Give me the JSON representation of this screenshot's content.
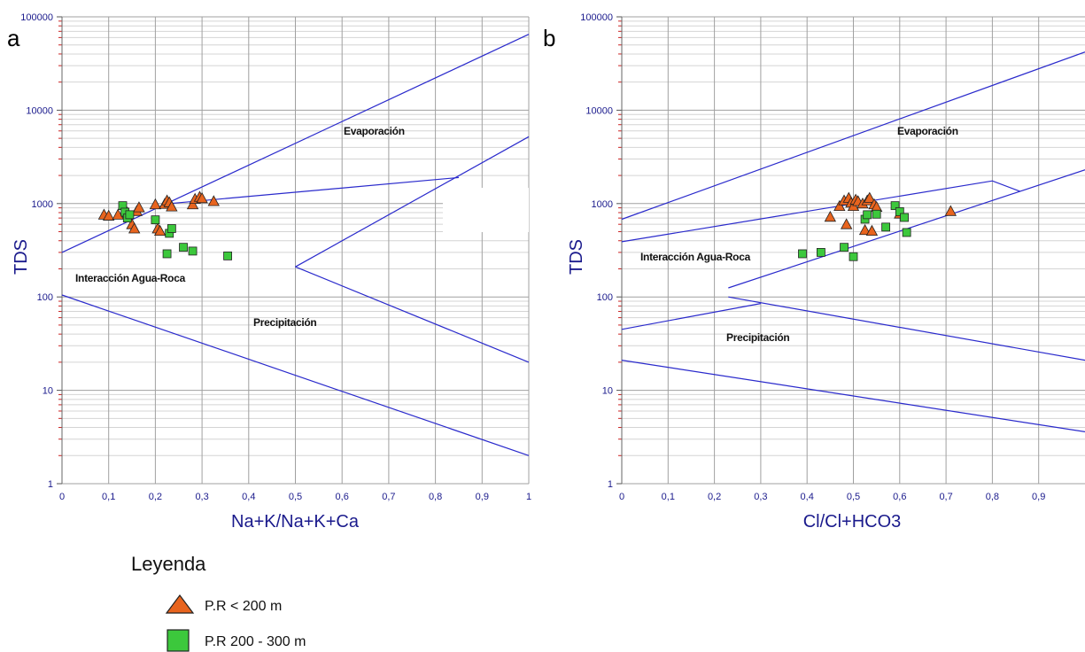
{
  "chart_data": [
    {
      "panel": "a",
      "type": "scatter",
      "xlabel": "Na+K/Na+K+Ca",
      "ylabel": "TDS",
      "xlim": [
        0,
        1
      ],
      "ylim": [
        1,
        100000
      ],
      "yscale": "log",
      "x_ticks": [
        "0",
        "0,1",
        "0,2",
        "0,3",
        "0,4",
        "0,5",
        "0,6",
        "0,7",
        "0,8",
        "0,9",
        "1"
      ],
      "y_ticks": [
        "1",
        "10",
        "100",
        "1000",
        "10000",
        "100000"
      ],
      "grid": true,
      "annotations": [
        "Evaporación",
        "Interacción Agua-Roca",
        "Precipitación"
      ],
      "lines": [
        {
          "points": [
            [
              0,
              300
            ],
            [
              1,
              65000
            ]
          ]
        },
        {
          "points": [
            [
              0,
              105
            ],
            [
              1,
              2
            ]
          ]
        },
        {
          "points": [
            [
              0.23,
              1000
            ],
            [
              0.85,
              1900
            ]
          ]
        },
        {
          "points": [
            [
              0.5,
              210
            ],
            [
              1,
              5200
            ]
          ]
        },
        {
          "points": [
            [
              0.5,
              210
            ],
            [
              1,
              20
            ]
          ]
        }
      ],
      "series": [
        {
          "name": "P.R < 200 m",
          "marker": "triangle",
          "points": [
            [
              0.09,
              760
            ],
            [
              0.1,
              740
            ],
            [
              0.12,
              760
            ],
            [
              0.14,
              800
            ],
            [
              0.15,
              600
            ],
            [
              0.155,
              540
            ],
            [
              0.16,
              830
            ],
            [
              0.165,
              910
            ],
            [
              0.2,
              980
            ],
            [
              0.205,
              540
            ],
            [
              0.21,
              510
            ],
            [
              0.22,
              990
            ],
            [
              0.225,
              1080
            ],
            [
              0.23,
              1030
            ],
            [
              0.235,
              930
            ],
            [
              0.28,
              980
            ],
            [
              0.285,
              1120
            ],
            [
              0.295,
              1180
            ],
            [
              0.3,
              1140
            ],
            [
              0.325,
              1060
            ]
          ]
        },
        {
          "name": "P.R 200 - 300 m",
          "marker": "square",
          "points": [
            [
              0.13,
              950
            ],
            [
              0.135,
              810
            ],
            [
              0.14,
              700
            ],
            [
              0.145,
              760
            ],
            [
              0.2,
              670
            ],
            [
              0.225,
              290
            ],
            [
              0.23,
              480
            ],
            [
              0.235,
              540
            ],
            [
              0.26,
              340
            ],
            [
              0.28,
              310
            ],
            [
              0.355,
              275
            ]
          ]
        }
      ]
    },
    {
      "panel": "b",
      "type": "scatter",
      "xlabel": "Cl/Cl+HCO3",
      "ylabel": "TDS",
      "xlim": [
        0,
        1
      ],
      "ylim": [
        1,
        100000
      ],
      "yscale": "log",
      "x_ticks": [
        "0",
        "0,1",
        "0,2",
        "0,3",
        "0,4",
        "0,5",
        "0,6",
        "0,7",
        "0,8",
        "0,9"
      ],
      "y_ticks": [
        "1",
        "10",
        "100",
        "1000",
        "10000",
        "100000"
      ],
      "grid": true,
      "annotations": [
        "Evaporación",
        "Interacción Agua-Roca",
        "Precipitación"
      ],
      "lines": [
        {
          "points": [
            [
              0,
              680
            ],
            [
              1,
              42000
            ]
          ]
        },
        {
          "points": [
            [
              0,
              390
            ],
            [
              0.8,
              1750
            ],
            [
              0.86,
              1350
            ]
          ]
        },
        {
          "points": [
            [
              0.23,
              125
            ],
            [
              1,
              2300
            ]
          ]
        },
        {
          "points": [
            [
              0,
              45
            ],
            [
              0.3,
              85
            ]
          ]
        },
        {
          "points": [
            [
              0.23,
              100
            ],
            [
              1,
              21
            ]
          ]
        },
        {
          "points": [
            [
              0,
              21
            ],
            [
              1,
              3.6
            ]
          ]
        }
      ],
      "series": [
        {
          "name": "P.R < 200 m",
          "marker": "triangle",
          "points": [
            [
              0.45,
              720
            ],
            [
              0.47,
              940
            ],
            [
              0.48,
              1080
            ],
            [
              0.485,
              600
            ],
            [
              0.49,
              1150
            ],
            [
              0.495,
              1020
            ],
            [
              0.5,
              940
            ],
            [
              0.505,
              1100
            ],
            [
              0.51,
              1060
            ],
            [
              0.52,
              1000
            ],
            [
              0.525,
              520
            ],
            [
              0.53,
              1080
            ],
            [
              0.535,
              1150
            ],
            [
              0.54,
              510
            ],
            [
              0.545,
              980
            ],
            [
              0.55,
              920
            ],
            [
              0.6,
              780
            ],
            [
              0.71,
              830
            ]
          ]
        },
        {
          "name": "P.R 200 - 300 m",
          "marker": "square",
          "points": [
            [
              0.39,
              290
            ],
            [
              0.43,
              300
            ],
            [
              0.48,
              340
            ],
            [
              0.5,
              270
            ],
            [
              0.525,
              680
            ],
            [
              0.53,
              760
            ],
            [
              0.55,
              770
            ],
            [
              0.57,
              560
            ],
            [
              0.59,
              950
            ],
            [
              0.6,
              820
            ],
            [
              0.61,
              710
            ],
            [
              0.615,
              490
            ]
          ]
        }
      ]
    }
  ],
  "panels": [
    {
      "letter": "a",
      "xlabel": "Na+K/Na+K+Ca",
      "ylabel": "TDS",
      "labels": {
        "evap": "Evaporación",
        "rock": "Interacción Agua-Roca",
        "precip": "Precipitación"
      }
    },
    {
      "letter": "b",
      "xlabel": "Cl/Cl+HCO3",
      "ylabel": "TDS",
      "labels": {
        "evap": "Evaporación",
        "rock": "Interacción Agua-Roca",
        "precip": "Precipitación"
      }
    }
  ],
  "legend": {
    "title": "Leyenda",
    "items": [
      {
        "label": "P.R < 200 m",
        "marker": "triangle"
      },
      {
        "label": "P.R 200 - 300 m",
        "marker": "square"
      }
    ]
  },
  "colors": {
    "triangle_fill": "#e8641e",
    "square_fill": "#3cc83c",
    "line": "#2a2acc",
    "axis_text": "#1a1a8c",
    "grid_major": "#a0a0a0",
    "grid_minor": "#d4d4d4",
    "minor_tick": "#cc2222"
  }
}
